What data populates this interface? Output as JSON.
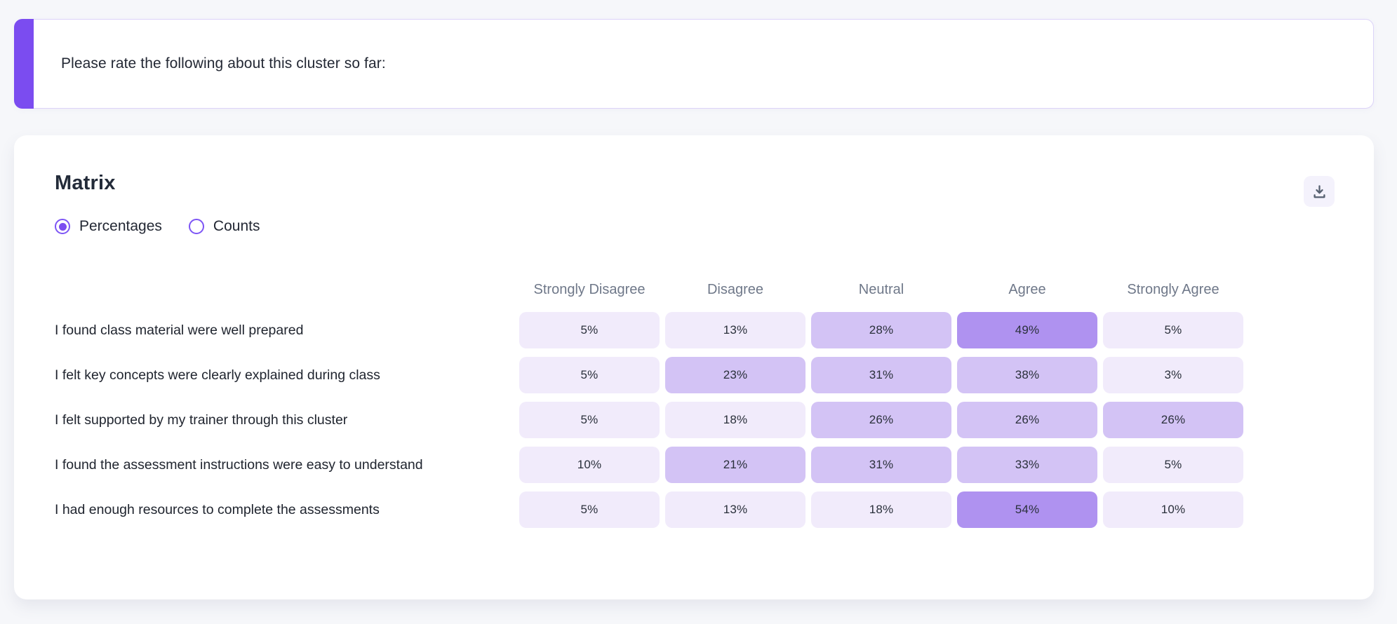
{
  "page": {
    "background": "#f6f7fa"
  },
  "question_card": {
    "text": "Please rate the following about this cluster so far:",
    "accent_color": "#7b4cf0",
    "border_color": "#dcd3f8"
  },
  "matrix_card": {
    "title": "Matrix",
    "view_toggle": {
      "options": [
        {
          "label": "Percentages",
          "selected": true
        },
        {
          "label": "Counts",
          "selected": false
        }
      ],
      "radio_color": "#7d55f5"
    },
    "toolbar": {
      "download_icon": "download-icon",
      "icon_color": "#566070",
      "button_background": "#f4f2fc"
    }
  },
  "chart_data": {
    "type": "heatmap",
    "title": "Matrix",
    "view": "Percentages",
    "value_format": "percent",
    "columns": [
      "Strongly Disagree",
      "Disagree",
      "Neutral",
      "Agree",
      "Strongly Agree"
    ],
    "rows": [
      {
        "label": "I found class material were well prepared",
        "values": [
          5,
          13,
          28,
          49,
          5
        ]
      },
      {
        "label": "I felt key concepts were clearly explained during class",
        "values": [
          5,
          23,
          31,
          38,
          3
        ]
      },
      {
        "label": "I felt supported by my trainer through this cluster",
        "values": [
          5,
          18,
          26,
          26,
          26
        ]
      },
      {
        "label": "I found the assessment instructions were easy to understand",
        "values": [
          10,
          21,
          31,
          33,
          5
        ]
      },
      {
        "label": "I had enough resources to complete the assessments",
        "values": [
          5,
          13,
          18,
          54,
          10
        ]
      }
    ],
    "color_scale": {
      "bins": [
        {
          "max": 20,
          "color": "#f1ebfb"
        },
        {
          "max": 40,
          "color": "#d3c3f5"
        },
        {
          "max": 100,
          "color": "#af92f0"
        }
      ]
    },
    "legend": "none",
    "grid": "off"
  }
}
